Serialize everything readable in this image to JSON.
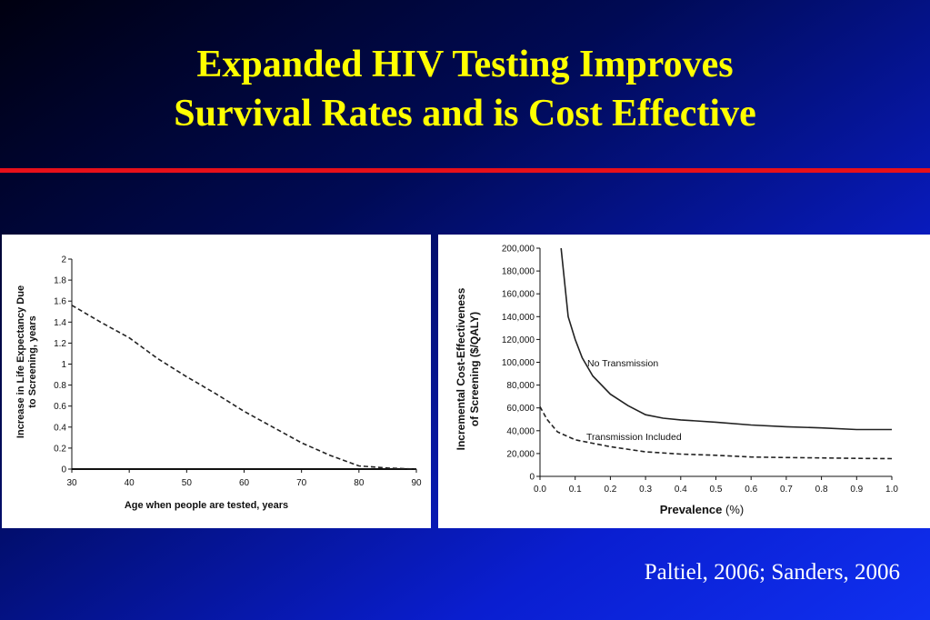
{
  "slide": {
    "title_line1": "Expanded HIV Testing Improves",
    "title_line2": "Survival Rates and is Cost Effective",
    "citation": "Paltiel, 2006; Sanders, 2006",
    "colors": {
      "title": "#ffff00",
      "rule": "#e8101a",
      "text": "#ffffff"
    }
  },
  "chart_data": [
    {
      "type": "line",
      "title": "",
      "xlabel": "Age when people are tested, years",
      "ylabel_line1": "Increase in Life Expectancy Due",
      "ylabel_line2": "to Screening, years",
      "xlim": [
        30,
        90
      ],
      "ylim": [
        0,
        2
      ],
      "xticks": [
        "30",
        "40",
        "50",
        "60",
        "70",
        "80",
        "90"
      ],
      "yticks": [
        "0",
        "0.2",
        "0.4",
        "0.6",
        "0.8",
        "1",
        "1.2",
        "1.4",
        "1.6",
        "1.8",
        "2"
      ],
      "series": [
        {
          "style": "dashed",
          "x": [
            30,
            35,
            40,
            45,
            50,
            55,
            60,
            65,
            70,
            75,
            80,
            85,
            90
          ],
          "y": [
            1.56,
            1.4,
            1.25,
            1.05,
            0.88,
            0.72,
            0.55,
            0.4,
            0.25,
            0.13,
            0.03,
            0.01,
            0.0
          ]
        }
      ]
    },
    {
      "type": "line",
      "title": "",
      "xlabel_main": "Prevalence",
      "xlabel_unit": "(%)",
      "ylabel_line1": "Incremental Cost-Effectiveness",
      "ylabel_line2": "of Screening ($/QALY)",
      "xlim": [
        0.0,
        1.0
      ],
      "ylim": [
        0,
        200000
      ],
      "xticks": [
        "0.0",
        "0.1",
        "0.2",
        "0.3",
        "0.4",
        "0.5",
        "0.6",
        "0.7",
        "0.8",
        "0.9",
        "1.0"
      ],
      "yticks": [
        "0",
        "20,000",
        "40,000",
        "60,000",
        "80,000",
        "100,000",
        "120,000",
        "140,000",
        "160,000",
        "180,000",
        "200,000"
      ],
      "series": [
        {
          "name": "No Transmission",
          "style": "solid",
          "x": [
            0.06,
            0.08,
            0.1,
            0.12,
            0.15,
            0.2,
            0.25,
            0.3,
            0.35,
            0.4,
            0.5,
            0.6,
            0.7,
            0.8,
            0.9,
            1.0
          ],
          "y": [
            200000,
            140000,
            120000,
            104000,
            88000,
            72000,
            62000,
            54000,
            51000,
            49500,
            47500,
            45000,
            43500,
            42500,
            41000,
            41000
          ]
        },
        {
          "name": "Transmission Included",
          "style": "dashed",
          "x": [
            0.0,
            0.02,
            0.05,
            0.1,
            0.15,
            0.2,
            0.3,
            0.4,
            0.5,
            0.6,
            0.7,
            0.8,
            0.9,
            1.0
          ],
          "y": [
            61000,
            50000,
            39000,
            32000,
            29000,
            26000,
            21500,
            19500,
            18500,
            17000,
            16500,
            16200,
            15800,
            15500
          ]
        }
      ]
    }
  ]
}
